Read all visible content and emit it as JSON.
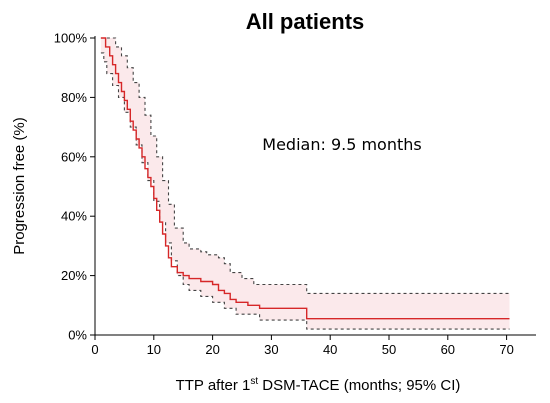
{
  "chart_data": {
    "type": "line",
    "title": "All patients",
    "xlabel": {
      "pre": "TTP after 1",
      "sup": "st",
      "post": " DSM-TACE (months; 95% CI)"
    },
    "ylabel": "Progression free (%)",
    "xlim": [
      0,
      75
    ],
    "ylim": [
      0,
      100
    ],
    "x_ticks": [
      0,
      10,
      20,
      30,
      40,
      50,
      60,
      70
    ],
    "y_ticks": [
      0,
      20,
      40,
      60,
      80,
      100
    ],
    "y_tick_labels": [
      "0%",
      "20%",
      "40%",
      "60%",
      "80%",
      "100%"
    ],
    "grid": false,
    "annotation": "Median: 9.5 months",
    "colors": {
      "estimate": "#d62728",
      "ci_band": "#f8d7da",
      "ci_lines": "#444444",
      "axis": "#000000"
    },
    "series": [
      {
        "role": "estimate",
        "style": "step",
        "x": [
          1.0,
          1.8,
          2.5,
          3.0,
          3.5,
          4.0,
          4.5,
          5.0,
          5.5,
          6.0,
          6.5,
          7.0,
          7.5,
          8.0,
          8.5,
          9.0,
          9.5,
          10.0,
          10.5,
          11.0,
          11.5,
          12.0,
          12.5,
          13.0,
          14.0,
          15.0,
          16.0,
          18.0,
          20.0,
          21.0,
          22.0,
          23.0,
          24.0,
          26.0,
          28.0,
          36.0,
          70.5
        ],
        "y": [
          100,
          97,
          94,
          91,
          88,
          85,
          82,
          79,
          76,
          72,
          69,
          66,
          63,
          60,
          56,
          53,
          50,
          46,
          42,
          38,
          34,
          30,
          26,
          23,
          21,
          20,
          19,
          18,
          17,
          15,
          14,
          12,
          11,
          10,
          9,
          5.5,
          5.5
        ]
      },
      {
        "role": "upper_ci",
        "style": "step",
        "x": [
          1.0,
          2.5,
          3.5,
          4.5,
          5.5,
          6.5,
          7.5,
          8.5,
          9.5,
          10.5,
          11.5,
          12.5,
          13.5,
          15.0,
          16.0,
          18.0,
          19.0,
          21.0,
          22.0,
          23.0,
          25.0,
          27.0,
          36.0,
          70.5
        ],
        "y": [
          100,
          100,
          97,
          94,
          90,
          85,
          80,
          74,
          67,
          60,
          52,
          44,
          36,
          31,
          29,
          28,
          27,
          26,
          24,
          21,
          19,
          17,
          14,
          14
        ]
      },
      {
        "role": "lower_ci",
        "style": "step",
        "x": [
          1.0,
          1.5,
          2.0,
          3.0,
          4.0,
          5.0,
          6.0,
          7.0,
          8.0,
          9.0,
          10.0,
          11.0,
          12.0,
          13.0,
          14.0,
          15.0,
          16.0,
          18.0,
          20.0,
          22.0,
          24.0,
          28.0,
          36.0,
          70.5
        ],
        "y": [
          95,
          92,
          88,
          84,
          80,
          75,
          70,
          64,
          58,
          52,
          45,
          38,
          31,
          25,
          20,
          17,
          15,
          13,
          11,
          9,
          7,
          5,
          2,
          2
        ]
      }
    ]
  }
}
